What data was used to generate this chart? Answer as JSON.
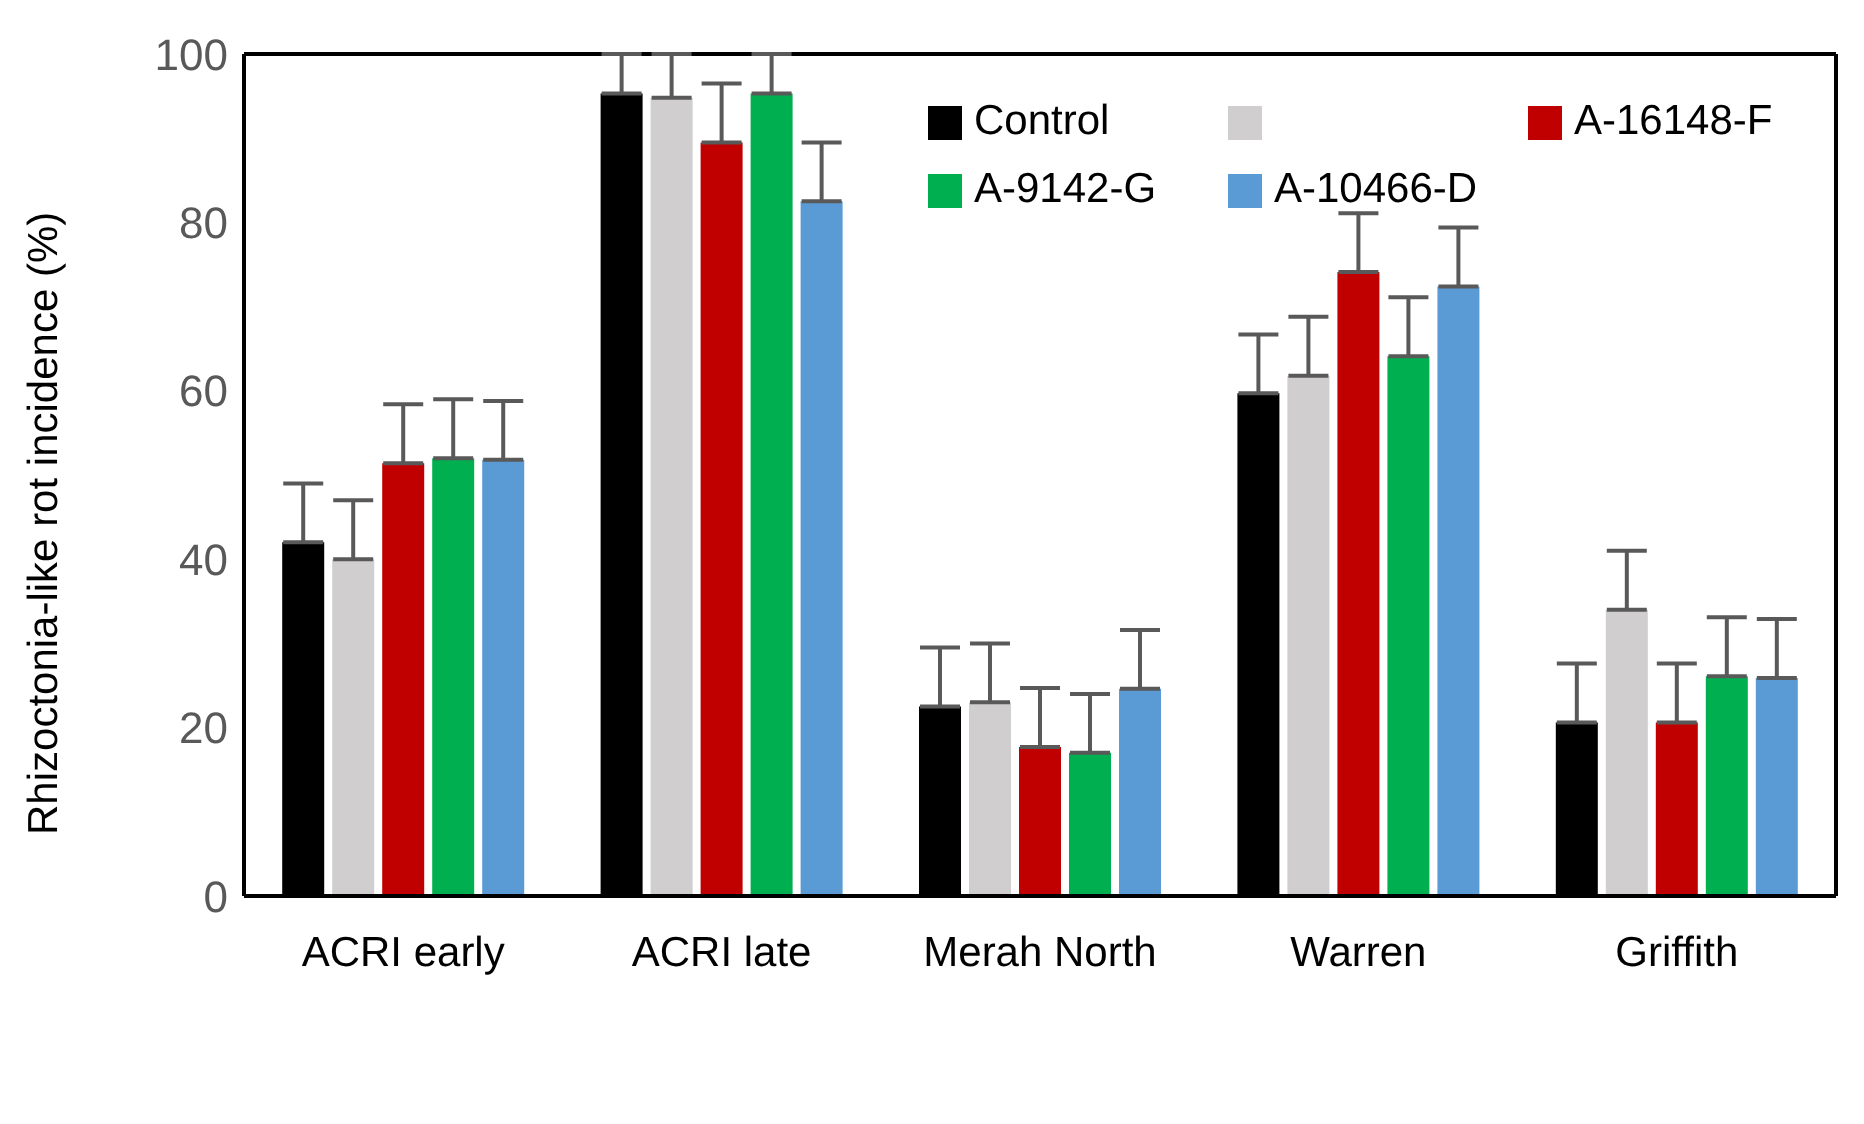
{
  "chart_data": {
    "type": "bar",
    "ylabel": "Rhizoctonia-like rot incidence (%)",
    "categories": [
      "ACRI early",
      "ACRI late",
      "Merah North",
      "Warren",
      "Griffith"
    ],
    "ylim": [
      0,
      100
    ],
    "yticks": [
      0,
      20,
      40,
      60,
      80,
      100
    ],
    "legend": "top right",
    "series": [
      {
        "name": "Control",
        "color": "#000000",
        "values": [
          42,
          95.3,
          22.5,
          59.7,
          20.6
        ],
        "errors": [
          [
            42,
            49
          ],
          [
            95.3,
            100
          ],
          [
            22.5,
            29.5
          ],
          [
            59.7,
            66.7
          ],
          [
            20.6,
            27.6
          ]
        ]
      },
      {
        "color": "#d0cece",
        "values": [
          40,
          94.8,
          23,
          61.8,
          34
        ],
        "errors": [
          [
            40,
            47
          ],
          [
            94.8,
            100
          ],
          [
            23,
            30
          ],
          [
            61.8,
            68.8
          ],
          [
            34,
            41
          ]
        ]
      },
      {
        "name": "A-16148-F",
        "color": "#c00000",
        "values": [
          51.4,
          89.5,
          17.7,
          74.1,
          20.6
        ],
        "errors": [
          [
            51.4,
            58.4
          ],
          [
            89.5,
            96.5
          ],
          [
            17.7,
            24.7
          ],
          [
            74.1,
            81.1
          ],
          [
            20.6,
            27.6
          ]
        ]
      },
      {
        "name": "A-9142-G",
        "color": "#00b050",
        "values": [
          52,
          95.3,
          17,
          64.1,
          26.1
        ],
        "errors": [
          [
            52,
            59
          ],
          [
            95.3,
            100
          ],
          [
            17,
            24
          ],
          [
            64.1,
            71.1
          ],
          [
            26.1,
            33.1
          ]
        ]
      },
      {
        "name": "A-10466-D",
        "color": "#5b9bd5",
        "values": [
          51.8,
          82.5,
          24.6,
          72.4,
          25.9
        ],
        "errors": [
          [
            51.8,
            58.8
          ],
          [
            82.5,
            89.5
          ],
          [
            24.6,
            31.6
          ],
          [
            72.4,
            79.4
          ],
          [
            25.9,
            32.9
          ]
        ]
      }
    ]
  }
}
